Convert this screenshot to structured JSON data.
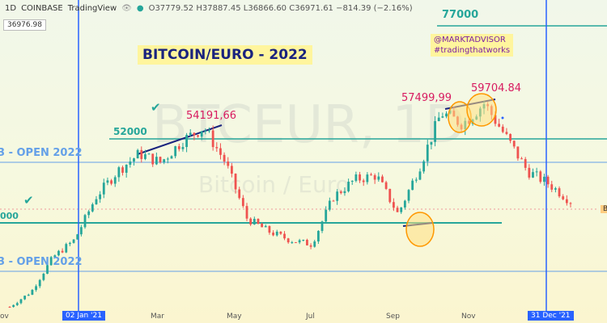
{
  "header": {
    "interval": "1D",
    "exchange": "COINBASE",
    "platform": "TradingView",
    "ohlc": "O37779.52 H37887.45 L36866.60 C36971.61 −814.39 (−2.16%)",
    "current_price_tag": "36976.98"
  },
  "title": "BITCOIN/EURO - 2022",
  "author": [
    "@MARKTADVISOR",
    "#tradingthatworks"
  ],
  "watermark": {
    "main": "BTCEUR, 1D",
    "sub": "Bitcoin / Euro"
  },
  "labels": {
    "level_77000": "77000",
    "level_52000": "52000",
    "open_2022_upper": "3 - OPEN 2022",
    "open_2022_lower": "3 - OPEN 2022",
    "level_partial": "000",
    "price_54191": "54191,66",
    "price_57499": "57499,99",
    "price_59704": "59704.84",
    "right_edge_tag": "B"
  },
  "colors": {
    "green_line": "#26a69a",
    "blue_line": "#2962ff",
    "light_blue_line": "#64a0e8",
    "up_candle": "#26a69a",
    "down_candle": "#ef5350",
    "price_text": "#d81b60",
    "circle_fill": "#ffe082",
    "circle_stroke": "#ff9800"
  },
  "chart_data": {
    "type": "candlestick",
    "symbol": "BTCEUR",
    "interval": "1D",
    "x_ticks": [
      "ov",
      "02 Jan '21",
      "Mar",
      "May",
      "Jul",
      "Sep",
      "Nov",
      "31 Dec '21"
    ],
    "horizontal_levels": [
      77000,
      52000
    ],
    "annotated_prices": [
      "54191,66",
      "57499,99",
      "59704.84"
    ],
    "close_path": [
      [
        "Nov '20",
        12500
      ],
      [
        "Dec '20",
        16000
      ],
      [
        "02 Jan '21",
        24000
      ],
      [
        "Jan '21",
        28000
      ],
      [
        "Feb '21",
        38000
      ],
      [
        "Feb '21",
        44000
      ],
      [
        "Mar '21",
        48000
      ],
      [
        "Mar '21",
        46000
      ],
      [
        "Apr '21",
        51000
      ],
      [
        "Apr '21",
        54191
      ],
      [
        "May '21",
        46000
      ],
      [
        "May '21",
        33000
      ],
      [
        "Jun '21",
        30000
      ],
      [
        "Jul '21",
        28000
      ],
      [
        "Jul '21",
        27000
      ],
      [
        "Aug '21",
        38000
      ],
      [
        "Aug '21",
        42000
      ],
      [
        "Sep '21",
        43000
      ],
      [
        "Sep '21",
        34000
      ],
      [
        "Oct '21",
        45000
      ],
      [
        "Oct '21",
        57499
      ],
      [
        "Nov '21",
        55000
      ],
      [
        "Nov '21",
        59704
      ],
      [
        "Nov '21",
        52000
      ],
      [
        "Dec '21",
        44000
      ],
      [
        "31 Dec '21",
        41000
      ],
      [
        "Jan '22",
        37000
      ]
    ]
  }
}
